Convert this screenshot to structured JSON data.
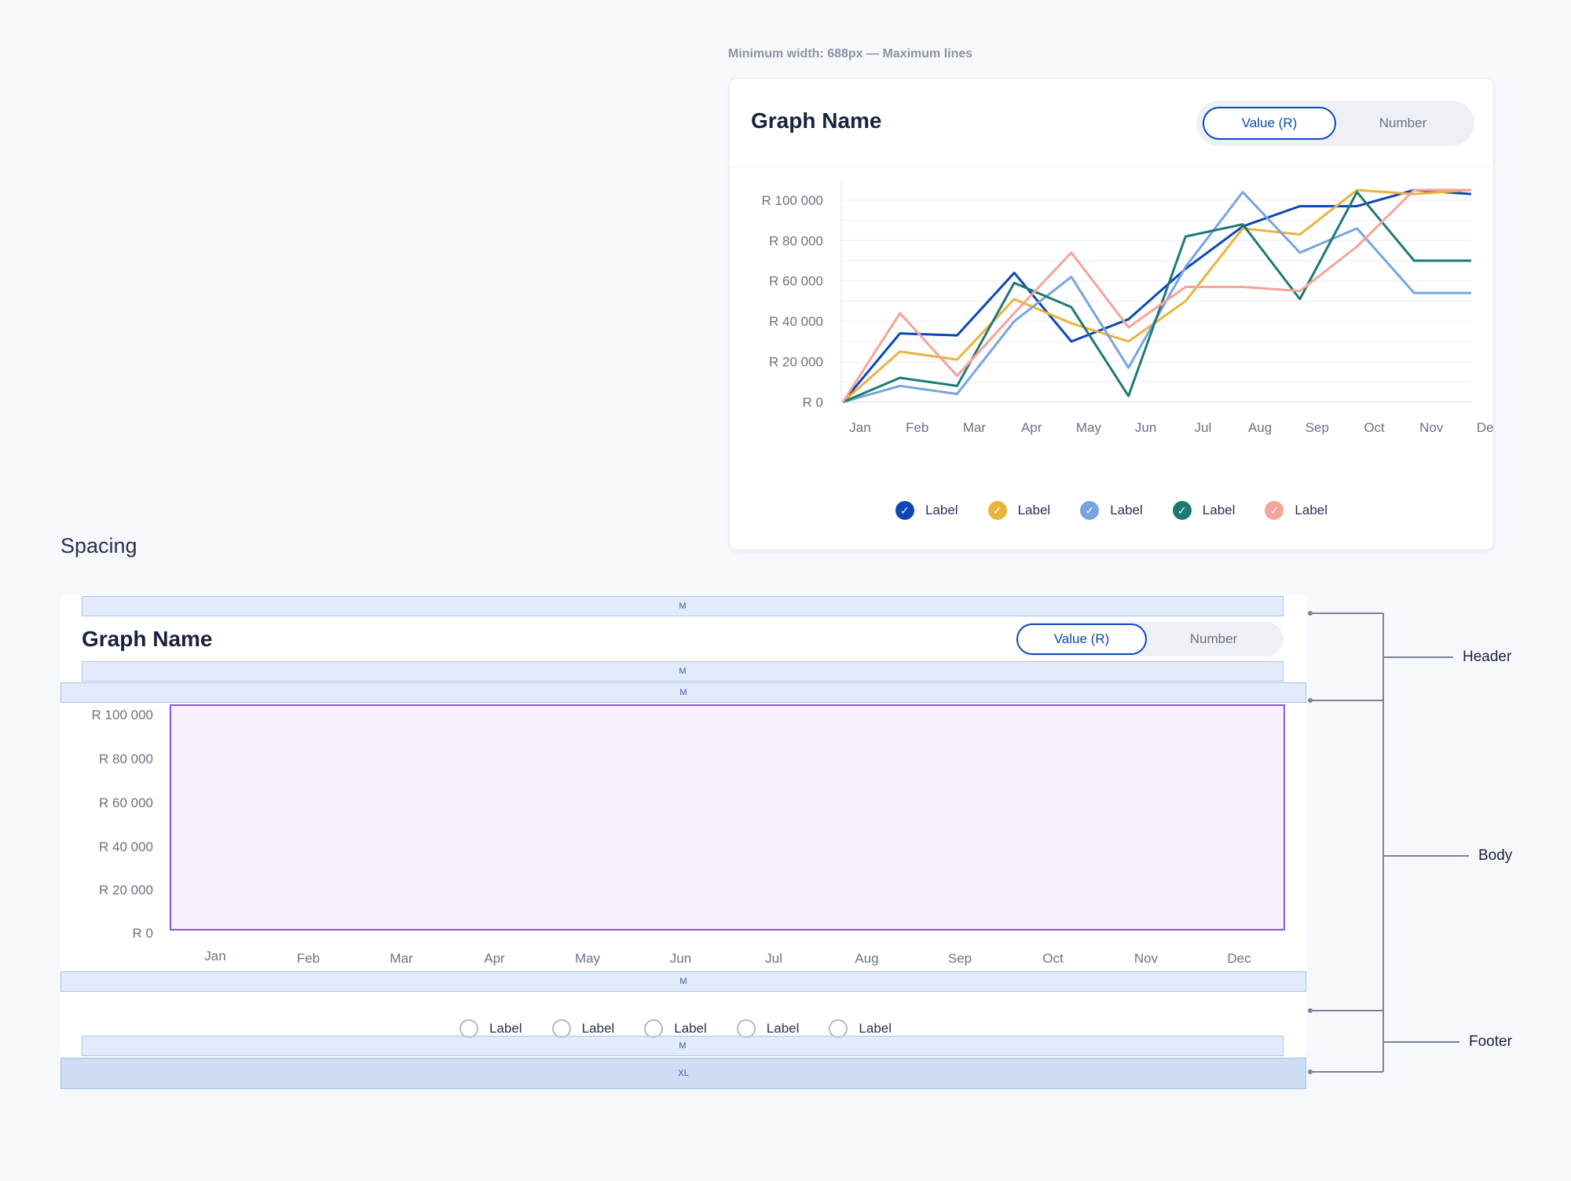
{
  "top_note": "Minimum width: 688px — Maximum lines",
  "card": {
    "title": "Graph Name",
    "toggle": {
      "active": "Value (R)",
      "inactive": "Number"
    }
  },
  "legend": [
    {
      "label": "Label",
      "color": "#0d47b5"
    },
    {
      "label": "Label",
      "color": "#eab33c"
    },
    {
      "label": "Label",
      "color": "#77a4e0"
    },
    {
      "label": "Label",
      "color": "#1d7a72"
    },
    {
      "label": "Label",
      "color": "#f6a39a"
    }
  ],
  "chart_data": {
    "type": "line",
    "x": [
      "Jan",
      "Feb",
      "Mar",
      "Apr",
      "May",
      "Jun",
      "Jul",
      "Aug",
      "Sep",
      "Oct",
      "Nov",
      "Dec"
    ],
    "yticks": [
      "R 0",
      "R 20 000",
      "R 40 000",
      "R 60 000",
      "R 80 000",
      "R 100 000"
    ],
    "ylim": [
      0,
      105000
    ],
    "grid": true,
    "legend_position": "bottom",
    "series": [
      {
        "color": "#0d47b5",
        "values": [
          0,
          34000,
          33000,
          64000,
          30000,
          41000,
          66000,
          87000,
          97000,
          97000,
          105000,
          103000
        ]
      },
      {
        "color": "#eab33c",
        "values": [
          0,
          25000,
          21000,
          51000,
          39000,
          30000,
          50000,
          86000,
          83000,
          105000,
          103000,
          105000
        ]
      },
      {
        "color": "#77a4e0",
        "values": [
          0,
          8000,
          4000,
          40000,
          62000,
          17000,
          67000,
          104000,
          74000,
          86000,
          54000,
          54000
        ]
      },
      {
        "color": "#1d7a72",
        "values": [
          0,
          12000,
          8000,
          59000,
          47000,
          3000,
          82000,
          88000,
          51000,
          104000,
          70000,
          70000
        ]
      },
      {
        "color": "#f6a39a",
        "values": [
          0,
          44000,
          13000,
          44000,
          74000,
          37000,
          57000,
          57000,
          55000,
          77000,
          105000,
          105000
        ]
      }
    ]
  },
  "spacing": {
    "heading": "Spacing",
    "card_title": "Graph Name",
    "toggle": {
      "active": "Value (R)",
      "inactive": "Number"
    },
    "band_labels": [
      "M",
      "M",
      "M",
      "M",
      "M",
      "XL"
    ],
    "yticks": [
      "R 100 000",
      "R 80 000",
      "R 60 000",
      "R 40 000",
      "R 20 000",
      "R 0"
    ],
    "xticks": [
      "Jan",
      "Feb",
      "Mar",
      "Apr",
      "May",
      "Jun",
      "Jul",
      "Aug",
      "Sep",
      "Oct",
      "Nov",
      "Dec"
    ],
    "legend": [
      "Label",
      "Label",
      "Label",
      "Label",
      "Label"
    ],
    "sections": [
      "Header",
      "Body",
      "Footer"
    ]
  }
}
